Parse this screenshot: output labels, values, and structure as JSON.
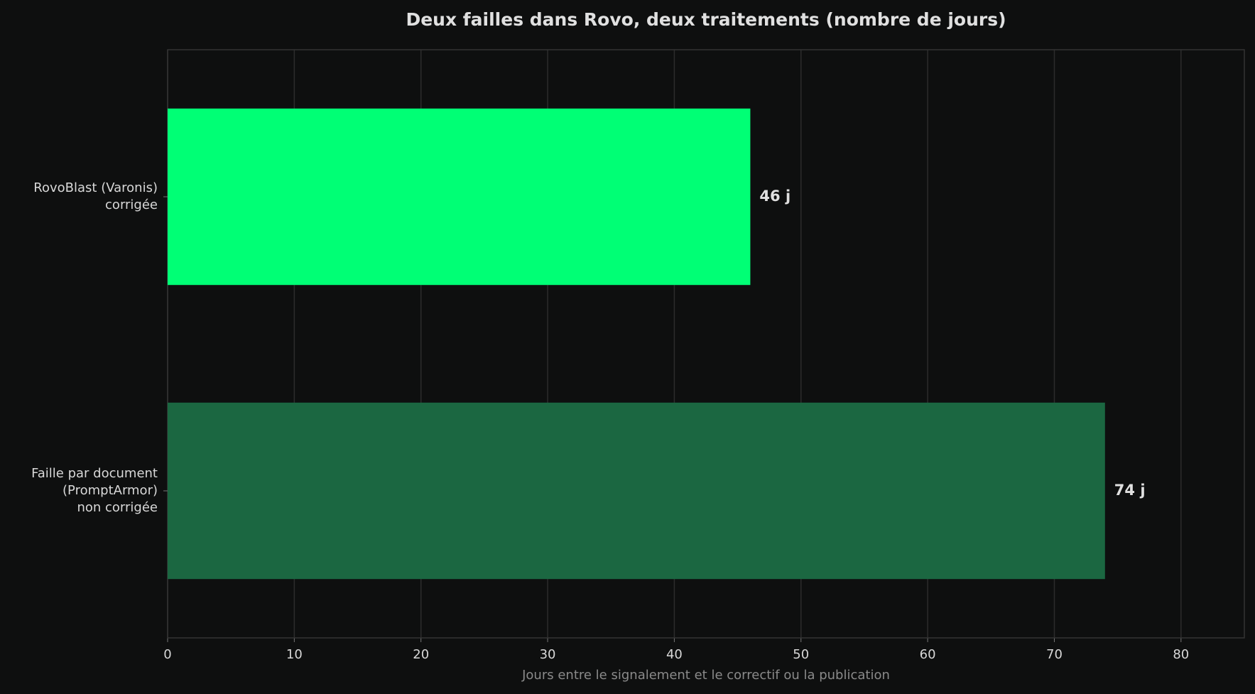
{
  "chart_data": {
    "type": "barh",
    "title": "Deux failles dans Rovo, deux traitements (nombre de jours)",
    "x_label": "Jours entre le signalement et le correctif ou la publication",
    "categories": [
      [
        "RovoBlast (Varonis)",
        "corrigée"
      ],
      [
        "Faille par document",
        "(PromptArmor)",
        "non corrigée"
      ]
    ],
    "values": [
      46,
      74
    ],
    "value_labels": [
      "46 j",
      "74 j"
    ],
    "colors": [
      "#00ff75",
      "#1b6741"
    ],
    "xlim": [
      0,
      85
    ],
    "xticks": [
      0,
      10,
      20,
      30,
      40,
      50,
      60,
      70,
      80
    ],
    "grid": true
  }
}
